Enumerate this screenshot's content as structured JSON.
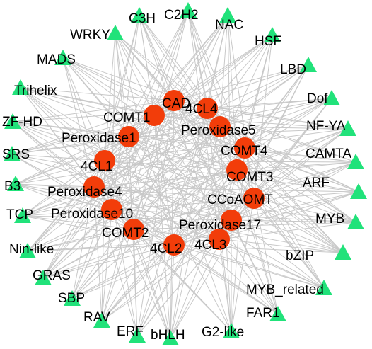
{
  "colors": {
    "tf_node": "#21e27a",
    "gene_node": "#f23d0a",
    "edge": "#c8c8c8",
    "label": "#000000"
  },
  "transcription_factors": [
    {
      "id": "C3H",
      "label": "C3H"
    },
    {
      "id": "C2H2",
      "label": "C2H2"
    },
    {
      "id": "NAC",
      "label": "NAC"
    },
    {
      "id": "HSF",
      "label": "HSF"
    },
    {
      "id": "LBD",
      "label": "LBD"
    },
    {
      "id": "Dof",
      "label": "Dof"
    },
    {
      "id": "NF-YA",
      "label": "NF-YA"
    },
    {
      "id": "CAMTA",
      "label": "CAMTA"
    },
    {
      "id": "ARF",
      "label": "ARF"
    },
    {
      "id": "MYB",
      "label": "MYB"
    },
    {
      "id": "bZIP",
      "label": "bZIP"
    },
    {
      "id": "MYB_related",
      "label": "MYB_related"
    },
    {
      "id": "FAR1",
      "label": "FAR1"
    },
    {
      "id": "G2-like",
      "label": "G2-like"
    },
    {
      "id": "bHLH",
      "label": "bHLH"
    },
    {
      "id": "ERF",
      "label": "ERF"
    },
    {
      "id": "RAV",
      "label": "RAV"
    },
    {
      "id": "SBP",
      "label": "SBP"
    },
    {
      "id": "GRAS",
      "label": "GRAS"
    },
    {
      "id": "Nin-like",
      "label": "Nin-like"
    },
    {
      "id": "TCP",
      "label": "TCP"
    },
    {
      "id": "B3",
      "label": "B3"
    },
    {
      "id": "SRS",
      "label": "SRS"
    },
    {
      "id": "ZF-HD",
      "label": "ZF-HD"
    },
    {
      "id": "Trihelix",
      "label": "Trihelix"
    },
    {
      "id": "MADS",
      "label": "MADS"
    },
    {
      "id": "WRKY",
      "label": "WRKY"
    }
  ],
  "genes": [
    {
      "id": "CAD",
      "label": "CAD"
    },
    {
      "id": "4CL4",
      "label": "4CL4"
    },
    {
      "id": "Peroxidase5",
      "label": "Peroxidase5"
    },
    {
      "id": "COMT4",
      "label": "COMT4"
    },
    {
      "id": "COMT3",
      "label": "COMT3"
    },
    {
      "id": "CCoAOMT",
      "label": "CCoAOMT"
    },
    {
      "id": "Peroxidase17",
      "label": "Peroxidase17"
    },
    {
      "id": "4CL3",
      "label": "4CL3"
    },
    {
      "id": "4CL2",
      "label": "4CL2"
    },
    {
      "id": "COMT2",
      "label": "COMT2"
    },
    {
      "id": "Peroxidase10",
      "label": "Peroxidase10"
    },
    {
      "id": "Peroxidase4",
      "label": "Peroxidase4"
    },
    {
      "id": "4CL1",
      "label": "4CL1"
    },
    {
      "id": "Peroxidase1",
      "label": "Peroxidase1"
    },
    {
      "id": "COMT1",
      "label": "COMT1"
    }
  ]
}
